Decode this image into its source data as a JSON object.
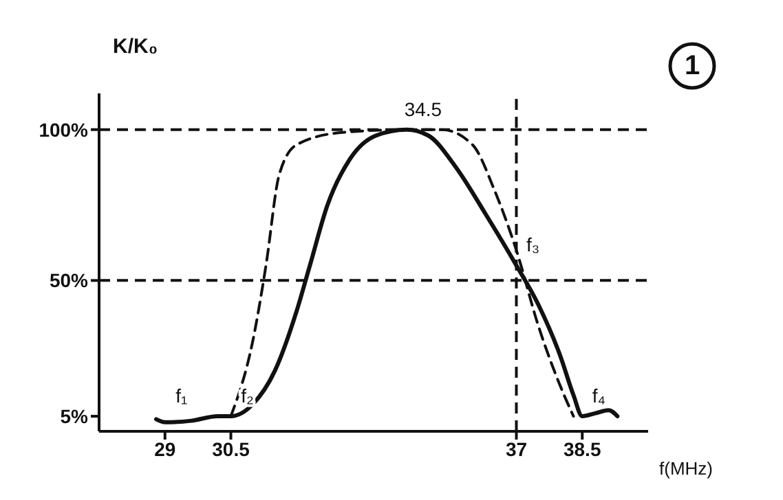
{
  "chart_data": {
    "type": "line",
    "xlabel": "f(MHz)",
    "ylabel": "K/K₀",
    "xlim": [
      27.5,
      40
    ],
    "xticks": [
      29,
      30.5,
      37,
      38.5
    ],
    "ylim": [
      0,
      112
    ],
    "yticks": [
      {
        "value": 5,
        "label": "5%"
      },
      {
        "value": 50,
        "label": "50%"
      },
      {
        "value": 100,
        "label": "100%"
      }
    ],
    "series": [
      {
        "color": "#111111",
        "line_style": "solid",
        "x": [
          28.8,
          29,
          29.6,
          30.2,
          30.5,
          31,
          31.5,
          32,
          32.3,
          32.7,
          33.2,
          33.8,
          34.5,
          35,
          35.6,
          36.3,
          37,
          37.5,
          38,
          38.3,
          38.5,
          38.8,
          39.1,
          39.3
        ],
        "values": [
          4,
          3,
          3.5,
          5,
          5,
          9,
          20,
          40,
          55,
          75,
          90,
          98,
          100,
          98,
          88,
          72,
          55,
          42,
          25,
          12,
          5,
          6,
          7,
          5
        ]
      },
      {
        "color": "#111111",
        "line_style": "dashed",
        "x": [
          30.5,
          31,
          31.3,
          31.6,
          32,
          33,
          34.5,
          35.3,
          36,
          36.5,
          37,
          37.5,
          38,
          38.3
        ],
        "values": [
          5,
          30,
          55,
          85,
          95,
          99,
          100,
          100,
          95,
          80,
          60,
          35,
          15,
          5
        ]
      }
    ],
    "ref_lines": [
      {
        "axis": "y",
        "value": 100,
        "line_style": "dashed"
      },
      {
        "axis": "y",
        "value": 50,
        "line_style": "dashed"
      },
      {
        "axis": "x",
        "value": 37,
        "line_style": "dashed"
      }
    ],
    "annotations": [
      {
        "text": "f₁",
        "x": 29,
        "y": 5
      },
      {
        "text": "f₂",
        "x": 30.5,
        "y": 5
      },
      {
        "text": "34.5",
        "x": 34.5,
        "y": 100
      },
      {
        "text": "f₃",
        "x": 37,
        "y": 55
      },
      {
        "text": "f₄",
        "x": 38.5,
        "y": 5
      },
      "1"
    ],
    "marker": "none",
    "grid": false
  }
}
